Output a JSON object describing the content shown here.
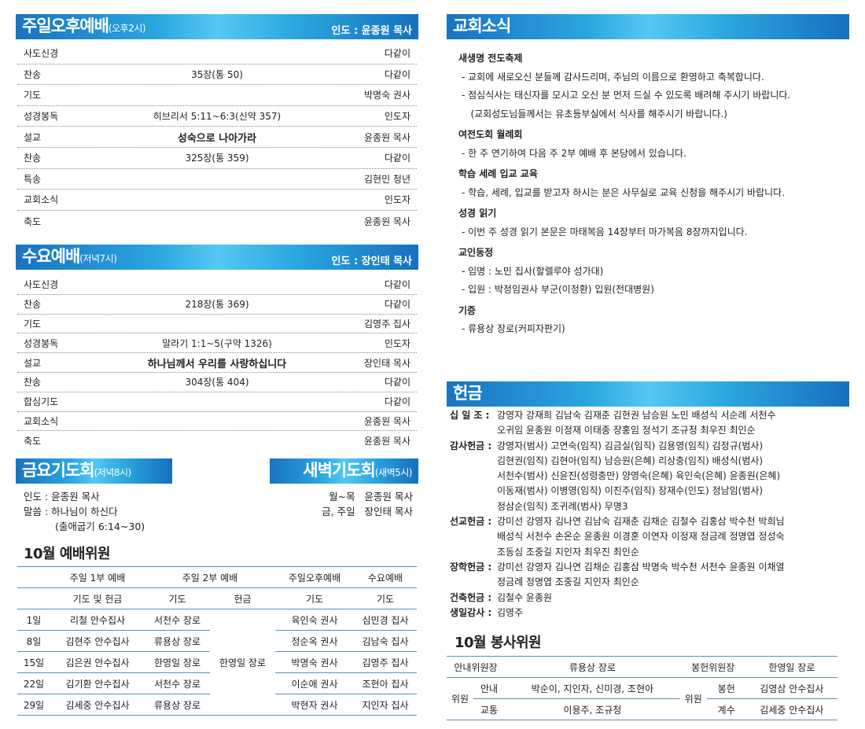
{
  "sunday_pm": {
    "title": "주일오후예배",
    "time": "(오후2시)",
    "leader": "인도 : 윤종원 목사",
    "rows": [
      [
        "사도신경",
        "",
        "다같이"
      ],
      [
        "찬송",
        "35장(통 50)",
        "다같이"
      ],
      [
        "기도",
        "",
        "박명숙 권사"
      ],
      [
        "성경봉독",
        "히브리서 5:11~6:3(신약 357)",
        "인도자"
      ],
      [
        "설교",
        "성숙으로 나아가라",
        "윤종원 목사"
      ],
      [
        "찬송",
        "325장(통 359)",
        "다같이"
      ],
      [
        "특송",
        "",
        "김현민 청년"
      ],
      [
        "교회소식",
        "",
        "인도자"
      ],
      [
        "축도",
        "",
        "윤종원 목사"
      ]
    ]
  },
  "wednesday": {
    "title": "수요예배",
    "time": "(저녁7시)",
    "leader": "인도 : 장인태 목사",
    "rows": [
      [
        "사도신경",
        "",
        "다같이"
      ],
      [
        "찬송",
        "218장(통 369)",
        "다같이"
      ],
      [
        "기도",
        "",
        "김영주 집사"
      ],
      [
        "성경봉독",
        "말라기 1:1~5(구약 1326)",
        "인도자"
      ],
      [
        "설교",
        "하나님께서 우리를 사랑하십니다",
        "장인태 목사"
      ],
      [
        "찬송",
        "304장(통 404)",
        "다같이"
      ],
      [
        "합심기도",
        "",
        "다같이"
      ],
      [
        "교회소식",
        "",
        "윤종원 목사"
      ],
      [
        "축도",
        "",
        "윤종원 목사"
      ]
    ]
  },
  "friday": {
    "title": "금요기도회",
    "time": "(저녁8시)",
    "leader": "인도 : 윤종원 목사",
    "word": "말씀 : 하나님이 하신다",
    "ref": "(출애굽기 6:14~30)"
  },
  "dawn": {
    "title": "새벽기도회",
    "time": "(새벽5시)",
    "lines": [
      [
        "월~목",
        "윤종원 목사"
      ],
      [
        "금, 주일",
        "장인태 목사"
      ]
    ]
  },
  "worship_committee": {
    "title": "10월 예배위원",
    "head1": [
      "",
      "주일 1부 예배",
      "주일 2부 예배",
      "주일오후예배",
      "수요예배"
    ],
    "head2": [
      "",
      "기도 및 헌금",
      "기도",
      "헌금",
      "기도",
      "기도"
    ],
    "offering_shared": "한영일 장로",
    "rows": [
      [
        "1일",
        "리철 안수집사",
        "서천수 장로",
        "육인숙 권사",
        "심민경 집사"
      ],
      [
        "8일",
        "김현주 안수집사",
        "류용상 장로",
        "정순옥 권사",
        "김남숙 집사"
      ],
      [
        "15일",
        "김은권 안수집사",
        "한영일 장로",
        "박명숙 권사",
        "김영주 집사"
      ],
      [
        "22일",
        "김기환 안수집사",
        "서천수 장로",
        "이순애 권사",
        "조현아 집사"
      ],
      [
        "29일",
        "김세중 안수집사",
        "류용상 장로",
        "박현자 권사",
        "지인자 집사"
      ]
    ]
  },
  "news": {
    "title": "교회소식",
    "items": [
      {
        "h": "새생명 전도축제",
        "lines": [
          "- 교회에 새로오신 분들께 감사드리며, 주님의 이름으로 환영하고 축복합니다.",
          "- 점심식사는 태신자를 모시고 오신 분 먼저 드실 수 있도록 배려해 주시기 바랍니다.",
          "   (교회성도님들께서는 유초등부실에서 식사를 해주시기 바랍니다.)"
        ]
      },
      {
        "h": "여전도회 월례회",
        "lines": [
          "- 한 주 연기하여 다음 주 2부 예배 후 본당에서 있습니다."
        ]
      },
      {
        "h": "학습 세례 입교 교육",
        "lines": [
          "- 학습, 세례, 입교를 받고자 하시는 분은 사무실로 교육 신청을 해주시기 바랍니다."
        ]
      },
      {
        "h": "성경 읽기",
        "lines": [
          "- 이번 주 성경 읽기 본문은 마태복음 14장부터 마가복음 8장까지입니다."
        ]
      },
      {
        "h": "교인동정",
        "lines": [
          "- 임명 : 노민 집사(할렐루야 성가대)",
          "- 입원 : 박정임권사 부군(이정환) 입원(전대병원)"
        ]
      },
      {
        "h": "기증",
        "lines": [
          "- 류용상 장로(커피자판기)"
        ]
      }
    ]
  },
  "offering": {
    "title": "헌금",
    "items": [
      {
        "k": "십 일 조 :",
        "lines": [
          "강영자 강재희 김남숙 김재춘 김현권 남승원 노민 배성식 서순례 서천수",
          "오귀임 윤종원 이정재 이태종 장홍임 정석기 조규청 최우진 최인순"
        ]
      },
      {
        "k": "감사헌금 :",
        "lines": [
          "강영자(범사) 고연숙(임직) 김금실(임직) 김용영(임직) 김정규(범사)",
          "김현권(임직) 김현아(임직) 남승원(은혜) 리상충(임직) 배성식(범사)",
          "서천수(범사) 신윤진(성령충만) 양영숙(은혜) 육인숙(은혜) 윤종원(은혜)",
          "이동재(범사) 이병영(임직) 이진주(임직) 장재수(인도) 정남임(범사)",
          "정삼순(임직) 조귀례(범사) 무명3"
        ]
      },
      {
        "k": "선교헌금 :",
        "lines": [
          "강미선 강영자 김나연 김남숙 김재춘 김채순 김철수 김홍삼 박수천 박희님",
          "배성식 서천수 손온순 윤종원 이경훈 이연자 이정재 정금례 정명엽 정성숙",
          "조동심 조중길 지인자 최우진 최인순"
        ]
      },
      {
        "k": "장학헌금 :",
        "lines": [
          "강미선 강영자 김나연 김채순 김홍삼 박명숙 박수천 서천수 윤종원 이채열",
          "정금례 정명엽 조중길 지인자 최인순"
        ]
      },
      {
        "k": "건축헌금 :",
        "lines": [
          "김철수 윤종원"
        ]
      },
      {
        "k": "생일감사 :",
        "lines": [
          "김영주"
        ]
      }
    ]
  },
  "service_committee": {
    "title": "10월 봉사위원",
    "guide_head": "안내위원장",
    "guide_head_name": "류용상 장로",
    "offer_head": "봉헌위원장",
    "offer_head_name": "한영일 장로",
    "member": "위원",
    "guide": [
      [
        "안내",
        "박순이, 지인자, 신미경, 조현아"
      ],
      [
        "교통",
        "이용주, 조규청"
      ]
    ],
    "offer": [
      [
        "봉헌",
        "김영삼 안수집사"
      ],
      [
        "계수",
        "김세중 안수집사"
      ]
    ]
  },
  "colors": {
    "header_blue": "#1a73c0",
    "rule": "#5b8fb5"
  }
}
